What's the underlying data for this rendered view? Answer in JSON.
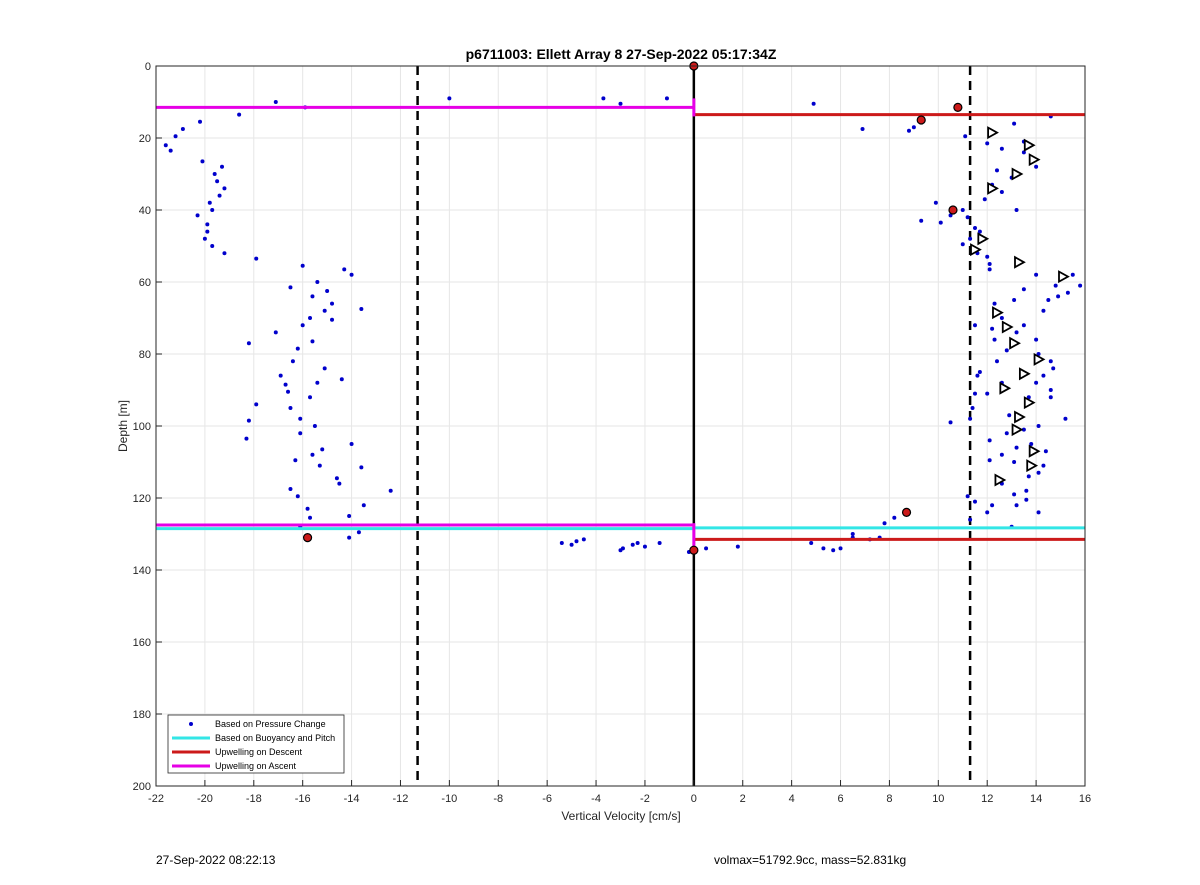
{
  "footer": {
    "left": "27-Sep-2022 08:22:13",
    "right": "volmax=51792.9cc, mass=52.831kg"
  },
  "chart_data": {
    "type": "scatter",
    "title": "p6711003: Ellett Array 8 27-Sep-2022 05:17:34Z",
    "xlabel": "Vertical Velocity [cm/s]",
    "ylabel": "Depth [m]",
    "xlim": [
      -22,
      16
    ],
    "ylim": [
      0,
      200
    ],
    "y_reversed": true,
    "xticks": [
      -22,
      -20,
      -18,
      -16,
      -14,
      -12,
      -10,
      -8,
      -6,
      -4,
      -2,
      0,
      2,
      4,
      6,
      8,
      10,
      12,
      14,
      16
    ],
    "yticks": [
      0,
      20,
      40,
      60,
      80,
      100,
      120,
      140,
      160,
      180,
      200
    ],
    "grid": true,
    "legend_location": "bottom-left",
    "colors": {
      "pressure": "#0000cc",
      "buoyancy": "#33e6e6",
      "descent": "#cc1a1a",
      "ascent": "#e600e6",
      "reference": "#000000"
    },
    "legend": [
      {
        "label": "Based on Pressure Change",
        "style": "dot",
        "color": "#0000cc"
      },
      {
        "label": "Based on Buoyancy and Pitch",
        "style": "line",
        "color": "#33e6e6"
      },
      {
        "label": "Upwelling on Descent",
        "style": "line",
        "color": "#cc1a1a"
      },
      {
        "label": "Upwelling on Ascent",
        "style": "line",
        "color": "#e600e6"
      }
    ],
    "reference_lines": {
      "vertical_solid": [
        0
      ],
      "vertical_dashed": [
        -11.3,
        11.3
      ]
    },
    "series": [
      {
        "name": "Based on Pressure Change",
        "style": "dot",
        "points": [
          [
            -17.1,
            10
          ],
          [
            -15.9,
            11.5
          ],
          [
            -18.6,
            13.5
          ],
          [
            -20.2,
            15.5
          ],
          [
            -20.9,
            17.5
          ],
          [
            -21.2,
            19.5
          ],
          [
            -21.6,
            22
          ],
          [
            -21.4,
            23.5
          ],
          [
            -20.1,
            26.5
          ],
          [
            -19.3,
            28
          ],
          [
            -19.6,
            30
          ],
          [
            -19.5,
            32
          ],
          [
            -19.2,
            34
          ],
          [
            -19.4,
            36
          ],
          [
            -19.8,
            38
          ],
          [
            -19.7,
            40
          ],
          [
            -20.3,
            41.5
          ],
          [
            -19.9,
            44
          ],
          [
            -19.9,
            46
          ],
          [
            -20.0,
            48
          ],
          [
            -19.7,
            50
          ],
          [
            -19.2,
            52
          ],
          [
            -17.9,
            53.5
          ],
          [
            -16.0,
            55.5
          ],
          [
            -14.3,
            56.5
          ],
          [
            -14.0,
            58
          ],
          [
            -15.4,
            60
          ],
          [
            -16.5,
            61.5
          ],
          [
            -15.0,
            62.5
          ],
          [
            -15.6,
            64
          ],
          [
            -14.8,
            66
          ],
          [
            -15.1,
            68
          ],
          [
            -13.6,
            67.5
          ],
          [
            -15.7,
            70
          ],
          [
            -14.8,
            70.5
          ],
          [
            -16.0,
            72
          ],
          [
            -17.1,
            74
          ],
          [
            -15.6,
            76.5
          ],
          [
            -18.2,
            77
          ],
          [
            -16.2,
            78.5
          ],
          [
            -16.4,
            82
          ],
          [
            -15.1,
            84
          ],
          [
            -16.9,
            86
          ],
          [
            -16.7,
            88.5
          ],
          [
            -15.4,
            88
          ],
          [
            -14.4,
            87
          ],
          [
            -16.6,
            90.5
          ],
          [
            -15.7,
            92
          ],
          [
            -17.9,
            94
          ],
          [
            -16.5,
            95
          ],
          [
            -16.1,
            98
          ],
          [
            -18.2,
            98.5
          ],
          [
            -15.5,
            100
          ],
          [
            -16.1,
            102
          ],
          [
            -18.3,
            103.5
          ],
          [
            -14.0,
            105
          ],
          [
            -15.2,
            106.5
          ],
          [
            -15.6,
            108
          ],
          [
            -16.3,
            109.5
          ],
          [
            -13.6,
            111.5
          ],
          [
            -15.3,
            111
          ],
          [
            -14.6,
            114.5
          ],
          [
            -16.5,
            117.5
          ],
          [
            -14.5,
            116
          ],
          [
            -12.4,
            118
          ],
          [
            -16.2,
            119.5
          ],
          [
            -13.5,
            122
          ],
          [
            -15.8,
            123
          ],
          [
            -14.1,
            125
          ],
          [
            -15.7,
            125.5
          ],
          [
            -16.1,
            128
          ],
          [
            -13.7,
            129.5
          ],
          [
            -14.1,
            131
          ],
          [
            -15.8,
            131.5
          ],
          [
            -10.0,
            9
          ],
          [
            -3.7,
            9
          ],
          [
            -3.0,
            10.5
          ],
          [
            -1.1,
            9
          ],
          [
            -5.4,
            132.5
          ],
          [
            -4.8,
            132
          ],
          [
            -4.5,
            131.5
          ],
          [
            -5.0,
            133
          ],
          [
            -3.0,
            134.5
          ],
          [
            -2.9,
            134
          ],
          [
            -2.5,
            133
          ],
          [
            -2.0,
            133.5
          ],
          [
            -2.3,
            132.5
          ],
          [
            -1.4,
            132.5
          ],
          [
            -0.2,
            135
          ],
          [
            0.5,
            134
          ],
          [
            1.8,
            133.5
          ],
          [
            4.9,
            10.5
          ],
          [
            6.9,
            17.5
          ],
          [
            4.8,
            132.5
          ],
          [
            5.3,
            134
          ],
          [
            5.7,
            134.5
          ],
          [
            6.0,
            134
          ],
          [
            6.5,
            130
          ],
          [
            7.2,
            131.5
          ],
          [
            6.5,
            131
          ],
          [
            7.6,
            131
          ],
          [
            7.8,
            127
          ],
          [
            8.2,
            125.5
          ],
          [
            8.8,
            18
          ],
          [
            9.0,
            17
          ],
          [
            9.4,
            15
          ],
          [
            10.8,
            12
          ],
          [
            11.1,
            19.5
          ],
          [
            12.0,
            21.5
          ],
          [
            12.6,
            23
          ],
          [
            13.1,
            16
          ],
          [
            13.5,
            24
          ],
          [
            13.5,
            21
          ],
          [
            13.8,
            25.5
          ],
          [
            14.0,
            28
          ],
          [
            12.4,
            29
          ],
          [
            13.0,
            31
          ],
          [
            12.2,
            33
          ],
          [
            12.6,
            35
          ],
          [
            11.9,
            37
          ],
          [
            13.2,
            40
          ],
          [
            9.9,
            38
          ],
          [
            10.5,
            41.5
          ],
          [
            10.1,
            43.5
          ],
          [
            9.3,
            43
          ],
          [
            11.0,
            40
          ],
          [
            11.2,
            42
          ],
          [
            11.5,
            45
          ],
          [
            11.3,
            48
          ],
          [
            11.7,
            46
          ],
          [
            11.0,
            49.5
          ],
          [
            11.6,
            52
          ],
          [
            12.0,
            53
          ],
          [
            12.1,
            55
          ],
          [
            12.1,
            56.5
          ],
          [
            14.0,
            58
          ],
          [
            14.8,
            61
          ],
          [
            15.3,
            63
          ],
          [
            14.9,
            64
          ],
          [
            14.5,
            65
          ],
          [
            14.3,
            68
          ],
          [
            13.1,
            65
          ],
          [
            13.5,
            62
          ],
          [
            15.8,
            61
          ],
          [
            15.5,
            58
          ],
          [
            12.3,
            66
          ],
          [
            12.6,
            70
          ],
          [
            11.5,
            72
          ],
          [
            12.2,
            73
          ],
          [
            12.3,
            76
          ],
          [
            13.5,
            72
          ],
          [
            14.0,
            76
          ],
          [
            13.2,
            74
          ],
          [
            12.8,
            79
          ],
          [
            14.1,
            80
          ],
          [
            14.6,
            82
          ],
          [
            14.7,
            84
          ],
          [
            14.3,
            86
          ],
          [
            14.0,
            88
          ],
          [
            14.6,
            90
          ],
          [
            14.6,
            92
          ],
          [
            13.7,
            92
          ],
          [
            12.0,
            91
          ],
          [
            12.6,
            88
          ],
          [
            11.5,
            91
          ],
          [
            11.7,
            85
          ],
          [
            12.4,
            82
          ],
          [
            11.6,
            86
          ],
          [
            11.4,
            95
          ],
          [
            11.3,
            98
          ],
          [
            10.5,
            99
          ],
          [
            12.9,
            97
          ],
          [
            15.2,
            98
          ],
          [
            14.1,
            100
          ],
          [
            13.5,
            101
          ],
          [
            12.8,
            102
          ],
          [
            12.1,
            104
          ],
          [
            13.8,
            105
          ],
          [
            14.4,
            107
          ],
          [
            13.2,
            106
          ],
          [
            12.6,
            108
          ],
          [
            12.1,
            109.5
          ],
          [
            14.3,
            111
          ],
          [
            13.1,
            110
          ],
          [
            14.1,
            113
          ],
          [
            13.7,
            114
          ],
          [
            12.6,
            116
          ],
          [
            13.6,
            118
          ],
          [
            13.1,
            119
          ],
          [
            13.6,
            120.5
          ],
          [
            11.2,
            119.5
          ],
          [
            11.5,
            121
          ],
          [
            12.2,
            122
          ],
          [
            12.0,
            124
          ],
          [
            13.2,
            122
          ],
          [
            14.1,
            124
          ],
          [
            13.0,
            128
          ],
          [
            11.3,
            126
          ],
          [
            14.6,
            14
          ]
        ]
      },
      {
        "name": "Based on Buoyancy and Pitch",
        "style": "line",
        "segments": [
          {
            "x": [
              -22,
              0
            ],
            "y": [
              128.5,
              128.5
            ]
          },
          {
            "x": [
              0,
              16
            ],
            "y": [
              128.3,
              128.3
            ]
          }
        ]
      },
      {
        "name": "Upwelling on Descent",
        "style": "line",
        "segments": [
          {
            "x": [
              0,
              16
            ],
            "y": [
              13.5,
              13.5
            ]
          },
          {
            "x": [
              0,
              16
            ],
            "y": [
              131.5,
              131.5
            ]
          }
        ]
      },
      {
        "name": "Upwelling on Ascent",
        "style": "line",
        "segments": [
          {
            "x": [
              -22,
              0
            ],
            "y": [
              11.5,
              11.5
            ]
          },
          {
            "x": [
              -22,
              0
            ],
            "y": [
              127.5,
              127.5
            ]
          },
          {
            "x": [
              0,
              0
            ],
            "y": [
              9,
              14
            ]
          },
          {
            "x": [
              0,
              0
            ],
            "y": [
              127,
              135
            ]
          }
        ]
      }
    ],
    "triangle_markers": [
      [
        12.2,
        18.5
      ],
      [
        13.7,
        22
      ],
      [
        13.9,
        26
      ],
      [
        13.2,
        30
      ],
      [
        12.2,
        34
      ],
      [
        11.8,
        48
      ],
      [
        11.5,
        51
      ],
      [
        13.3,
        54.5
      ],
      [
        15.1,
        58.5
      ],
      [
        12.4,
        68.5
      ],
      [
        12.8,
        72.5
      ],
      [
        13.1,
        77
      ],
      [
        14.1,
        81.5
      ],
      [
        13.5,
        85.5
      ],
      [
        12.7,
        89.5
      ],
      [
        13.7,
        93.5
      ],
      [
        13.3,
        97.5
      ],
      [
        13.2,
        101
      ],
      [
        13.9,
        107
      ],
      [
        13.8,
        111
      ],
      [
        12.5,
        115
      ]
    ],
    "red_markers": [
      [
        0,
        0
      ],
      [
        10.8,
        11.5
      ],
      [
        9.3,
        15
      ],
      [
        10.6,
        40
      ],
      [
        8.7,
        124
      ],
      [
        -15.8,
        131
      ],
      [
        0,
        134.5
      ]
    ]
  }
}
